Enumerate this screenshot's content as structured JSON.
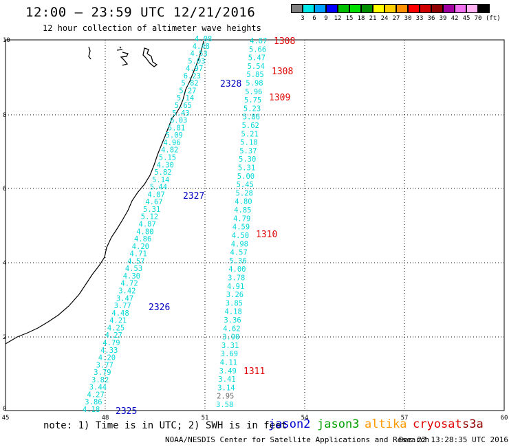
{
  "title": "12:00 – 23:59 UTC 12/21/2016",
  "subtitle": "12 hour collection of altimeter wave heights",
  "legend": {
    "unit": "(ft)",
    "colors": [
      "#808080",
      "#00e8e8",
      "#00a0ff",
      "#0000ff",
      "#00c000",
      "#00e000",
      "#009000",
      "#ffff00",
      "#ffd000",
      "#ff9000",
      "#ff0000",
      "#d00000",
      "#900000",
      "#a000a0",
      "#f070f0",
      "#ffb0f0",
      "#000000"
    ],
    "labels": [
      "3",
      "6",
      "9",
      "12",
      "15",
      "18",
      "21",
      "24",
      "27",
      "30",
      "33",
      "36",
      "39",
      "42",
      "45",
      "70"
    ]
  },
  "map": {
    "x_ticks": [
      "45",
      "48",
      "51",
      "54",
      "57",
      "60"
    ],
    "y_ticks": [
      "0",
      "2",
      "4",
      "6",
      "8",
      "10"
    ],
    "track_2325_2328_values": [
      "4.18",
      "3.86",
      "4.27",
      "3.44",
      "3.82",
      "3.79",
      "3.77",
      "4.20",
      "4.33",
      "4.79",
      "4.27",
      "4.25",
      "4.21",
      "4.48",
      "3.77",
      "3.47",
      "3.42",
      "4.72",
      "4.30",
      "4.53",
      "4.57",
      "4.71",
      "4.20",
      "4.86",
      "4.80",
      "4.87",
      "5.12",
      "5.31",
      "4.67",
      "4.87",
      "5.44",
      "5.14",
      "5.82",
      "4.30",
      "5.15",
      "4.82",
      "4.96",
      "5.09",
      "5.81",
      "6.03",
      "5.43",
      "5.65",
      "5.14",
      "5.27",
      "5.82",
      "6.23",
      "4.97",
      "5.03",
      "4.53",
      "4.48",
      "4.08"
    ],
    "track_1308_1311_values": [
      "3.58",
      "2.95",
      "3.14",
      "3.41",
      "3.49",
      "4.11",
      "3.69",
      "3.31",
      "3.90",
      "4.62",
      "3.36",
      "4.18",
      "3.85",
      "3.26",
      "4.91",
      "3.78",
      "4.00",
      "5.36",
      "4.57",
      "4.98",
      "4.50",
      "4.59",
      "4.79",
      "4.85",
      "4.80",
      "5.28",
      "5.45",
      "5.00",
      "5.31",
      "5.30",
      "5.37",
      "5.18",
      "5.21",
      "5.62",
      "5.86",
      "5.23",
      "5.75",
      "5.96",
      "5.98",
      "5.85",
      "5.54",
      "5.47",
      "5.66",
      "4.87"
    ],
    "rev_blue": [
      "2325",
      "2326",
      "2327",
      "2328"
    ],
    "rev_red": [
      "1311",
      "1310",
      "1309",
      "1308",
      "1308"
    ]
  },
  "note": "note: 1) Time is in UTC; 2) SWH is in feet",
  "satellites": [
    {
      "name": "jason2",
      "color": "#0000d0"
    },
    {
      "name": "jason3",
      "color": "#00a000"
    },
    {
      "name": "altika",
      "color": "#ff9900"
    },
    {
      "name": "cryosat",
      "color": "#e00000"
    },
    {
      "name": "s3a",
      "color": "#900000"
    }
  ],
  "footer_left": "NOAA/NESDIS Center for Satellite Applications and Research",
  "footer_right": "Dec 22 13:28:35 UTC 2016"
}
